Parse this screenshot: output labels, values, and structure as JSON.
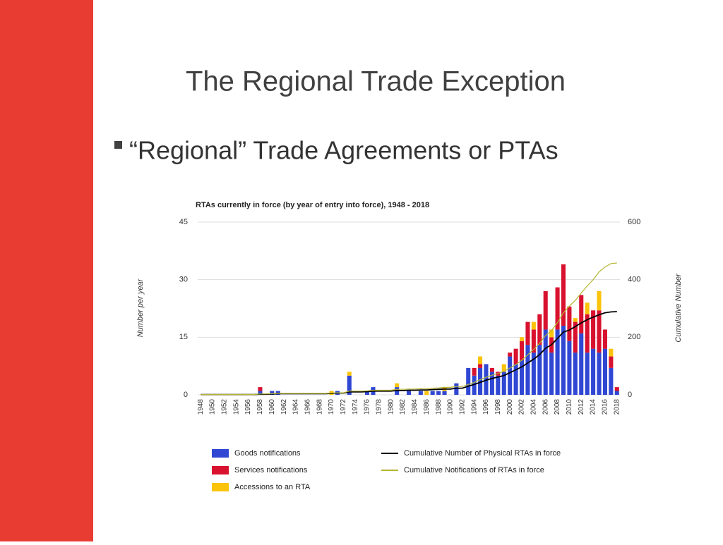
{
  "slide_title": "The Regional Trade Exception",
  "bullet": "“Regional” Trade Agreements or PTAs",
  "chart_data": {
    "type": "bar",
    "title": "RTAs currently in force (by year of entry into force), 1948 - 2018",
    "y_label": "Number per year",
    "y2_label": "Cumulative Number",
    "categories": [
      "1948",
      null,
      "1950",
      null,
      "1952",
      null,
      "1954",
      null,
      "1956",
      null,
      "1958",
      null,
      "1960",
      null,
      "1962",
      null,
      "1964",
      null,
      "1966",
      null,
      "1968",
      null,
      "1970",
      null,
      "1972",
      null,
      "1974",
      null,
      "1976",
      null,
      "1978",
      null,
      "1980",
      null,
      "1982",
      null,
      "1984",
      null,
      "1986",
      null,
      "1988",
      null,
      "1990",
      null,
      "1992",
      null,
      "1994",
      null,
      "1996",
      null,
      "1998",
      null,
      "2000",
      null,
      "2002",
      null,
      "2004",
      null,
      "2006",
      null,
      "2008",
      null,
      "2010",
      null,
      "2012",
      null,
      "2014",
      null,
      "2016",
      null,
      "2018"
    ],
    "ylim": [
      0,
      45
    ],
    "yticks": [
      0,
      15,
      30,
      45
    ],
    "y2lim": [
      0,
      600
    ],
    "y2ticks": [
      0,
      200,
      400,
      600
    ],
    "grid": true,
    "stacked": true,
    "series": [
      {
        "name": "Goods notifications",
        "type": "bar",
        "color": "#2f47d3",
        "values": [
          0,
          0,
          0,
          0,
          0,
          0,
          0,
          0,
          0,
          0,
          1,
          0,
          1,
          1,
          0,
          0,
          0,
          0,
          0,
          0,
          0,
          0,
          0,
          1,
          0,
          5,
          0,
          0,
          1,
          2,
          0,
          0,
          0,
          2,
          0,
          1,
          0,
          1,
          0,
          1,
          1,
          1,
          0,
          3,
          0,
          7,
          5,
          7,
          8,
          6,
          5,
          6,
          10,
          8,
          9,
          13,
          11,
          13,
          17,
          11,
          17,
          18,
          14,
          11,
          16,
          11,
          12,
          11,
          12,
          7,
          1
        ]
      },
      {
        "name": "Services notifications",
        "type": "bar",
        "color": "#d8112e",
        "values": [
          0,
          0,
          0,
          0,
          0,
          0,
          0,
          0,
          0,
          0,
          1,
          0,
          0,
          0,
          0,
          0,
          0,
          0,
          0,
          0,
          0,
          0,
          0,
          0,
          0,
          0,
          0,
          0,
          0,
          0,
          0,
          0,
          0,
          0,
          0,
          0,
          0,
          0,
          0,
          0,
          0,
          0,
          0,
          0,
          0,
          0,
          2,
          1,
          0,
          1,
          1,
          0,
          1,
          4,
          5,
          6,
          6,
          8,
          10,
          4,
          11,
          16,
          9,
          8,
          10,
          10,
          10,
          11,
          5,
          3,
          1
        ]
      },
      {
        "name": "Accessions to an RTA",
        "type": "bar",
        "color": "#fcc30b",
        "values": [
          0,
          0,
          0,
          0,
          0,
          0,
          0,
          0,
          0,
          0,
          0,
          0,
          0,
          0,
          0,
          0,
          0,
          0,
          0,
          0,
          0,
          0,
          1,
          0,
          0,
          1,
          0,
          0,
          0,
          0,
          0,
          0,
          0,
          1,
          0,
          0,
          0,
          0,
          1,
          0,
          0,
          1,
          0,
          0,
          0,
          0,
          0,
          2,
          0,
          0,
          0,
          2,
          0,
          0,
          1,
          0,
          2,
          0,
          0,
          2,
          0,
          0,
          0,
          1,
          0,
          3,
          0,
          5,
          0,
          2,
          0
        ]
      },
      {
        "name": "Cumulative Number of Physical RTAs in force",
        "type": "line",
        "axis": "y2",
        "color": "#000000",
        "values": [
          1,
          1,
          1,
          1,
          1,
          1,
          1,
          1,
          1,
          1,
          2,
          2,
          3,
          4,
          4,
          4,
          4,
          4,
          4,
          4,
          4,
          4,
          5,
          6,
          6,
          10,
          10,
          10,
          11,
          13,
          13,
          13,
          13,
          15,
          15,
          16,
          16,
          17,
          17,
          18,
          19,
          20,
          20,
          23,
          23,
          30,
          36,
          43,
          51,
          57,
          62,
          67,
          77,
          87,
          97,
          111,
          124,
          140,
          162,
          174,
          196,
          218,
          225,
          237,
          250,
          261,
          270,
          278,
          285,
          288,
          289
        ]
      },
      {
        "name": "Cumulative Notifications of RTAs in force",
        "type": "line",
        "axis": "y2",
        "color": "#b5b533",
        "values": [
          1,
          1,
          1,
          1,
          1,
          1,
          1,
          1,
          1,
          1,
          3,
          3,
          4,
          5,
          5,
          5,
          5,
          5,
          5,
          5,
          5,
          5,
          6,
          7,
          7,
          13,
          13,
          13,
          14,
          16,
          16,
          16,
          16,
          19,
          19,
          20,
          20,
          21,
          22,
          23,
          24,
          26,
          26,
          29,
          29,
          36,
          43,
          53,
          61,
          68,
          74,
          82,
          93,
          105,
          120,
          139,
          158,
          179,
          206,
          223,
          251,
          285,
          308,
          328,
          354,
          378,
          400,
          427,
          444,
          456,
          458
        ]
      }
    ]
  }
}
